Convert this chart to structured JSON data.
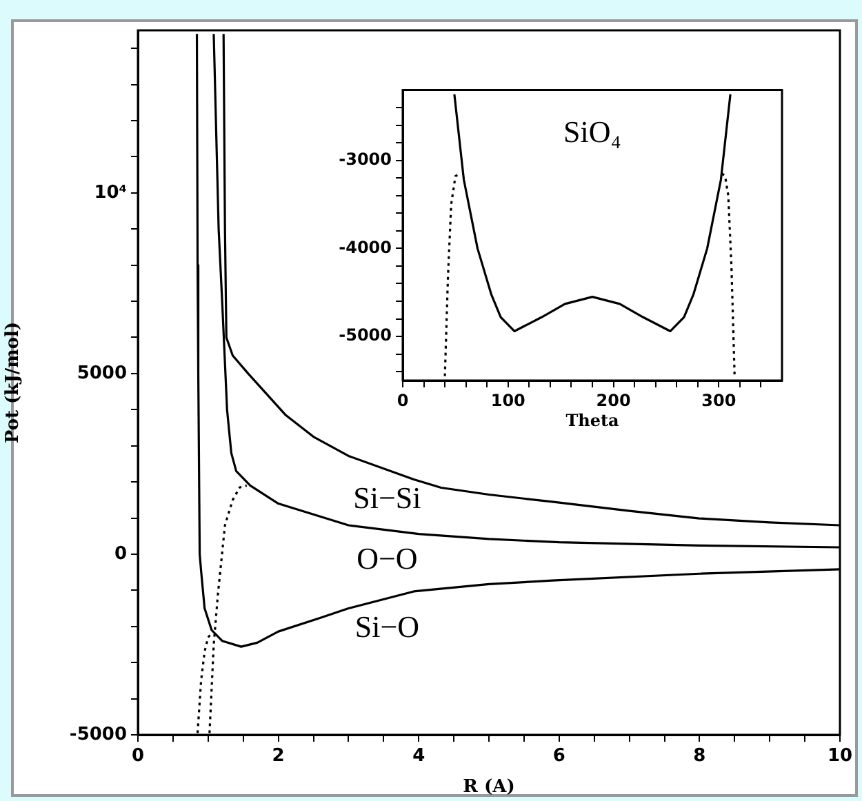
{
  "chart_data": [
    {
      "type": "line",
      "xlabel": "R (A)",
      "ylabel": "Pot (kJ/mol)",
      "xlim": [
        0,
        10
      ],
      "ylim": [
        -5000,
        14500
      ],
      "marker": "none",
      "grid": false,
      "xticks": [
        0,
        {
          "value": 0.5,
          "label": null
        },
        {
          "value": 1,
          "label": null
        },
        {
          "value": 1.5,
          "label": null
        },
        2,
        {
          "value": 2.5,
          "label": null
        },
        {
          "value": 3,
          "label": null
        },
        {
          "value": 3.5,
          "label": null
        },
        4,
        {
          "value": 4.5,
          "label": null
        },
        {
          "value": 5,
          "label": null
        },
        {
          "value": 5.5,
          "label": null
        },
        6,
        {
          "value": 6.5,
          "label": null
        },
        {
          "value": 7,
          "label": null
        },
        {
          "value": 7.5,
          "label": null
        },
        8,
        {
          "value": 8.5,
          "label": null
        },
        {
          "value": 9,
          "label": null
        },
        {
          "value": 9.5,
          "label": null
        },
        10
      ],
      "yticks": [
        -5000,
        {
          "value": -4000,
          "label": null
        },
        {
          "value": -3000,
          "label": null
        },
        {
          "value": -2000,
          "label": null
        },
        {
          "value": -1000,
          "label": null
        },
        0,
        {
          "value": 1000,
          "label": null
        },
        {
          "value": 2000,
          "label": null
        },
        {
          "value": 3000,
          "label": null
        },
        {
          "value": 4000,
          "label": null
        },
        5000,
        {
          "value": 6000,
          "label": null
        },
        {
          "value": 7000,
          "label": null
        },
        {
          "value": 8000,
          "label": null
        },
        {
          "value": 9000,
          "label": null
        },
        {
          "value": 10000,
          "label": "10⁴"
        },
        {
          "value": 11000,
          "label": null
        },
        {
          "value": 12000,
          "label": null
        },
        {
          "value": 13000,
          "label": null
        },
        {
          "value": 14000,
          "label": null
        }
      ],
      "series": [
        {
          "name": "Si−Si",
          "color": "#000000",
          "line_style": "solid",
          "x": [
            1.22,
            1.24,
            1.26,
            1.35,
            1.57,
            2.1,
            2.5,
            3,
            3.93,
            4.32,
            5,
            5.9,
            7,
            8,
            9,
            10
          ],
          "values": [
            14400,
            9000,
            6000,
            5500,
            5000,
            3860,
            3250,
            2720,
            2070,
            1840,
            1650,
            1450,
            1200,
            990,
            880,
            800
          ]
        },
        {
          "name": "O−O",
          "color": "#000000",
          "line_style": "solid",
          "x": [
            1.08,
            1.15,
            1.2,
            1.27,
            1.33,
            1.4,
            1.6,
            2,
            3,
            4,
            5,
            6,
            8,
            10
          ],
          "values": [
            14400,
            9000,
            7000,
            4000,
            2800,
            2300,
            1900,
            1400,
            800,
            560,
            420,
            330,
            240,
            190
          ]
        },
        {
          "color": "#000000",
          "line_style": "dotted",
          "x": [
            1.02,
            1.08,
            1.14,
            1.24,
            1.35,
            1.45,
            1.55
          ],
          "values": [
            -4950,
            -2500,
            -1100,
            800,
            1500,
            1850,
            1900
          ]
        },
        {
          "name": "Si−O",
          "color": "#000000",
          "line_style": "solid",
          "x": [
            0.84,
            0.85,
            0.86,
            0.88,
            0.9,
            0.95,
            1.05,
            1.2,
            1.47,
            1.7,
            2,
            2.6,
            3,
            3.93,
            5,
            5.9,
            8,
            10
          ],
          "values": [
            14400,
            8000,
            5000,
            0,
            -460,
            -1500,
            -2100,
            -2400,
            -2560,
            -2450,
            -2140,
            -1760,
            -1500,
            -1030,
            -830,
            -730,
            -540,
            -420
          ]
        },
        {
          "color": "#000000",
          "line_style": "dotted",
          "x": [
            0.85,
            0.9,
            0.95,
            1.0,
            1.08
          ],
          "values": [
            -4950,
            -3500,
            -2700,
            -2300,
            -2130
          ]
        }
      ]
    },
    {
      "type": "line",
      "xlabel": "Theta",
      "xlim": [
        0,
        360
      ],
      "ylim": [
        -5500,
        -2200
      ],
      "marker": "none",
      "grid": false,
      "annotations": [
        "SiO₄"
      ],
      "xticks": [
        0,
        {
          "value": 20,
          "label": null
        },
        {
          "value": 40,
          "label": null
        },
        {
          "value": 60,
          "label": null
        },
        {
          "value": 80,
          "label": null
        },
        100,
        {
          "value": 120,
          "label": null
        },
        {
          "value": 140,
          "label": null
        },
        {
          "value": 160,
          "label": null
        },
        {
          "value": 180,
          "label": null
        },
        200,
        {
          "value": 220,
          "label": null
        },
        {
          "value": 240,
          "label": null
        },
        {
          "value": 260,
          "label": null
        },
        {
          "value": 280,
          "label": null
        },
        300,
        {
          "value": 320,
          "label": null
        },
        {
          "value": 340,
          "label": null
        }
      ],
      "yticks": [
        {
          "value": -5400,
          "label": null
        },
        {
          "value": -5200,
          "label": null
        },
        -5000,
        {
          "value": -4800,
          "label": null
        },
        {
          "value": -4600,
          "label": null
        },
        {
          "value": -4400,
          "label": null
        },
        {
          "value": -4200,
          "label": null
        },
        -4000,
        {
          "value": -3800,
          "label": null
        },
        {
          "value": -3600,
          "label": null
        },
        {
          "value": -3400,
          "label": null
        },
        {
          "value": -3200,
          "label": null
        },
        -3000,
        {
          "value": -2800,
          "label": null
        },
        {
          "value": -2600,
          "label": null
        },
        {
          "value": -2400,
          "label": null
        }
      ],
      "series": [
        {
          "color": "#000000",
          "line_style": "solid",
          "x": [
            49,
            58,
            71,
            84,
            93,
            106,
            132,
            154,
            180,
            206,
            228,
            254,
            267,
            276,
            289,
            302,
            311
          ],
          "values": [
            -2250,
            -3220,
            -4000,
            -4520,
            -4780,
            -4940,
            -4780,
            -4630,
            -4550,
            -4630,
            -4780,
            -4940,
            -4780,
            -4520,
            -4000,
            -3220,
            -2250
          ]
        },
        {
          "color": "#000000",
          "line_style": "dotted",
          "x": [
            40,
            43,
            46,
            50,
            54
          ],
          "values": [
            -5450,
            -4300,
            -3500,
            -3180,
            -3150
          ]
        },
        {
          "color": "#000000",
          "line_style": "dotted",
          "x": [
            303,
            306,
            309,
            312,
            315
          ],
          "values": [
            -3150,
            -3180,
            -3400,
            -4200,
            -5450
          ]
        }
      ]
    }
  ]
}
